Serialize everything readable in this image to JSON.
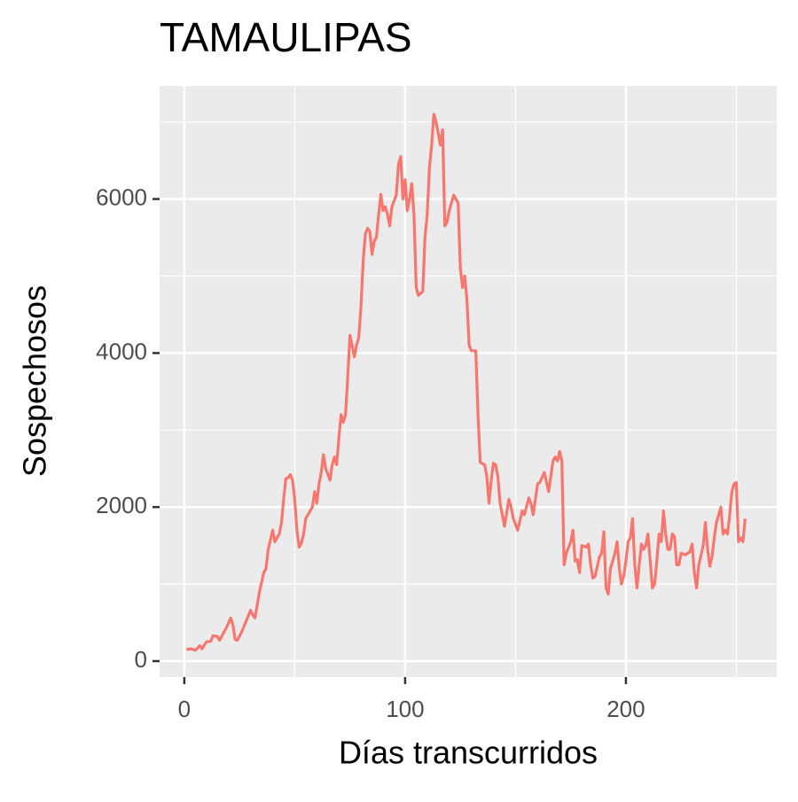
{
  "chart_data": {
    "type": "line",
    "title": "TAMAULIPAS",
    "x_label": "Días transcurridos",
    "y_label": "Sospechosos",
    "xlim": [
      -11.2,
      268.3
    ],
    "ylim": [
      -207,
      7468
    ],
    "xticks": [
      0,
      100,
      200
    ],
    "yticks": [
      0,
      2000,
      4000,
      6000
    ],
    "x_minor_ticks": [
      50,
      150,
      250
    ],
    "y_minor_ticks": [
      1000,
      3000,
      5000,
      7000
    ],
    "grid": true,
    "series": [
      {
        "color": "#F8766D",
        "x": [
          1,
          3,
          5,
          7,
          8,
          10,
          12,
          13,
          15,
          16,
          18,
          19,
          21,
          22,
          23,
          24,
          26,
          28,
          30,
          31,
          32,
          34,
          36,
          37,
          38,
          40,
          41,
          43,
          44,
          45,
          46,
          47,
          48,
          49,
          50,
          51,
          52,
          53,
          54,
          55,
          57,
          58,
          59,
          60,
          61,
          62,
          63,
          64,
          66,
          67,
          68,
          69,
          70,
          71,
          72,
          73,
          74,
          75,
          76,
          77,
          78,
          79,
          80,
          81,
          82,
          83,
          84,
          85,
          86,
          87,
          88,
          89,
          90,
          91,
          92,
          93,
          94,
          96,
          97,
          98,
          99,
          100,
          101,
          102,
          103,
          104,
          105,
          106,
          108,
          109,
          110,
          111,
          112,
          113,
          114,
          115,
          116,
          117,
          118,
          119,
          120,
          122,
          124,
          125,
          126,
          127,
          128,
          129,
          130,
          132,
          133,
          134,
          136,
          137,
          138,
          139,
          140,
          141,
          142,
          143,
          144,
          145,
          147,
          148,
          149,
          151,
          153,
          154,
          156,
          157,
          158,
          159,
          160,
          161,
          163,
          165,
          167,
          168,
          169,
          170,
          171,
          172,
          173,
          175,
          176,
          177,
          178,
          179,
          180,
          182,
          183,
          184,
          185,
          186,
          188,
          189,
          190,
          191,
          192,
          193,
          195,
          196,
          197,
          198,
          199,
          200,
          201,
          202,
          203,
          204,
          205,
          206,
          207,
          208,
          209,
          210,
          211,
          212,
          213,
          214,
          215,
          216,
          217,
          218,
          219,
          220,
          221,
          222,
          223,
          224,
          225,
          227,
          229,
          230,
          231,
          232,
          233,
          235,
          236,
          237,
          238,
          239,
          240,
          241,
          243,
          244,
          245,
          246,
          247,
          248,
          249,
          250,
          251,
          252,
          253,
          254
        ],
        "values": [
          150,
          160,
          140,
          200,
          160,
          250,
          260,
          330,
          320,
          270,
          380,
          430,
          560,
          470,
          280,
          270,
          380,
          520,
          660,
          600,
          560,
          900,
          1150,
          1200,
          1450,
          1700,
          1550,
          1650,
          1800,
          2100,
          2370,
          2380,
          2420,
          2350,
          2100,
          1700,
          1480,
          1530,
          1650,
          1850,
          1950,
          2000,
          2200,
          2050,
          2300,
          2450,
          2680,
          2500,
          2350,
          2550,
          2650,
          2550,
          2900,
          3200,
          3100,
          3200,
          3700,
          4230,
          4100,
          3950,
          4100,
          4200,
          4600,
          5200,
          5550,
          5620,
          5580,
          5280,
          5450,
          5500,
          5800,
          6060,
          5850,
          5900,
          5800,
          5650,
          5900,
          6050,
          6450,
          6550,
          6000,
          6250,
          5850,
          6000,
          6200,
          5800,
          4850,
          4750,
          4800,
          5500,
          5800,
          6400,
          6700,
          7100,
          7000,
          6850,
          6700,
          6900,
          5650,
          5700,
          5850,
          6050,
          5950,
          5100,
          4850,
          5000,
          4700,
          4100,
          4030,
          4030,
          3200,
          2580,
          2550,
          2400,
          2050,
          2350,
          2570,
          2550,
          2400,
          2050,
          1900,
          1750,
          2100,
          2000,
          1850,
          1700,
          1950,
          1900,
          2120,
          2050,
          1900,
          2100,
          2300,
          2320,
          2450,
          2200,
          2600,
          2650,
          2600,
          2720,
          2600,
          1250,
          1400,
          1550,
          1700,
          1300,
          1320,
          1150,
          1500,
          1480,
          1520,
          1250,
          1080,
          1100,
          1350,
          1400,
          1680,
          950,
          870,
          1200,
          1400,
          1550,
          1200,
          1000,
          1100,
          1300,
          1550,
          1600,
          1850,
          1250,
          950,
          1250,
          1520,
          1450,
          1500,
          1650,
          1300,
          950,
          1000,
          1300,
          1650,
          1550,
          1950,
          1650,
          1450,
          1450,
          1650,
          1620,
          1250,
          1250,
          1400,
          1380,
          1420,
          1520,
          1150,
          950,
          1250,
          1500,
          1800,
          1450,
          1230,
          1350,
          1600,
          1800,
          2000,
          1650,
          1700,
          1650,
          1900,
          2200,
          2300,
          2320,
          1550,
          1600,
          1550,
          1850
        ]
      }
    ]
  }
}
